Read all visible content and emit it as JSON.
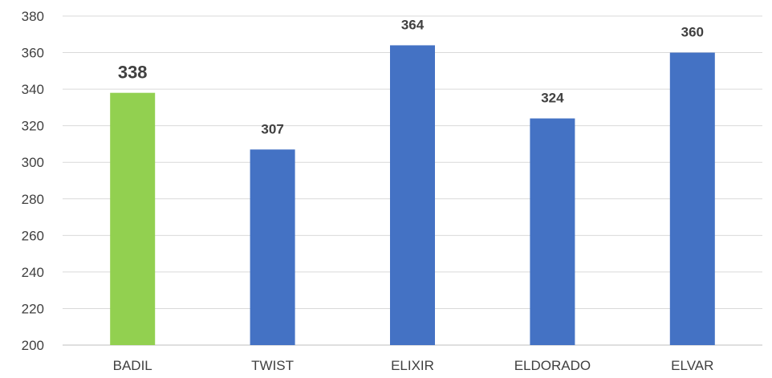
{
  "chart_data": {
    "type": "bar",
    "title": "",
    "xlabel": "",
    "ylabel": "",
    "categories": [
      "BADIL",
      "TWIST",
      "ELIXIR",
      "ELDORADO",
      "ELVAR"
    ],
    "values": [
      338,
      307,
      364,
      324,
      360
    ],
    "data_labels": [
      "338",
      "307",
      "364",
      "324",
      "360"
    ],
    "ylim": [
      200,
      380
    ],
    "yticks": [
      200,
      220,
      240,
      260,
      280,
      300,
      320,
      340,
      360,
      380
    ],
    "ytick_labels": [
      "200",
      "220",
      "240",
      "260",
      "280",
      "300",
      "320",
      "340",
      "360",
      "380"
    ],
    "grid": true,
    "legend": "none",
    "colors": [
      "#92d050",
      "#4472c4",
      "#4472c4",
      "#4472c4",
      "#4472c4"
    ],
    "highlighted_category": "BADIL"
  }
}
